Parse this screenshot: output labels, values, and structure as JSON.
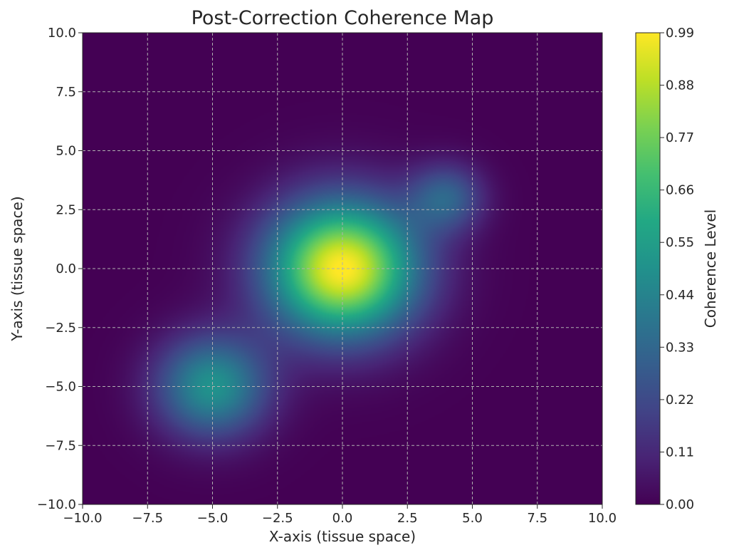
{
  "chart_data": {
    "type": "heatmap",
    "title": "Post-Correction Coherence Map",
    "xlabel": "X-axis (tissue space)",
    "ylabel": "Y-axis (tissue space)",
    "xlim": [
      -10,
      10
    ],
    "ylim": [
      -10,
      10
    ],
    "x_ticks": [
      "−10.0",
      "−7.5",
      "−5.0",
      "−2.5",
      "0.0",
      "2.5",
      "5.0",
      "7.5",
      "10.0"
    ],
    "y_ticks": [
      "−10.0",
      "−7.5",
      "−5.0",
      "−2.5",
      "0.0",
      "2.5",
      "5.0",
      "7.5",
      "10.0"
    ],
    "grid": true,
    "colormap": "viridis",
    "colorbar": {
      "label": "Coherence Level",
      "range": [
        0,
        0.99
      ],
      "ticks": [
        "0.00",
        "0.11",
        "0.22",
        "0.33",
        "0.44",
        "0.55",
        "0.66",
        "0.77",
        "0.88",
        "0.99"
      ]
    },
    "peaks": [
      {
        "x": 0.0,
        "y": 0.0,
        "amplitude": 1.0,
        "sigma": 2.0
      },
      {
        "x": -5.0,
        "y": -5.0,
        "amplitude": 0.5,
        "sigma": 1.5
      },
      {
        "x": 4.0,
        "y": 3.0,
        "amplitude": 0.3,
        "sigma": 1.0
      }
    ]
  }
}
